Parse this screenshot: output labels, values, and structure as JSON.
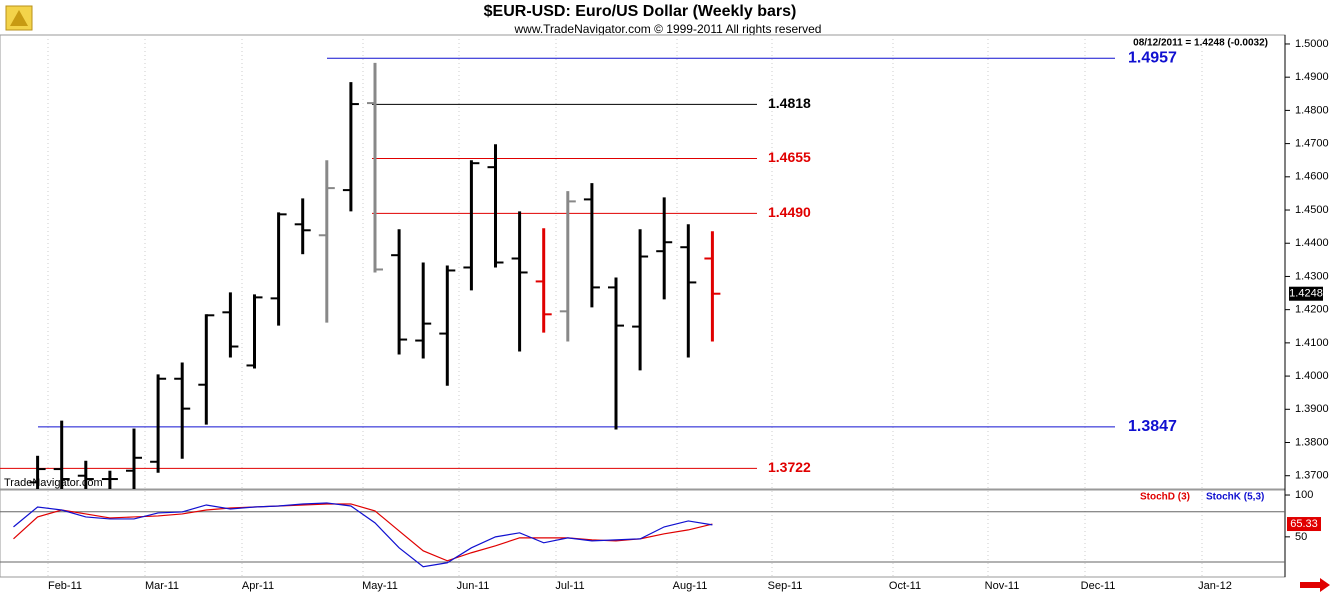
{
  "header": {
    "title": "$EUR-USD:  Euro/US Dollar  (Weekly bars)",
    "subtitle": "www.TradeNavigator.com © 1999-2011 All rights reserved",
    "info": "08/12/2011 = 1.4248 (-0.0032)",
    "watermark": "TradeNavigator.com"
  },
  "chart_data": [
    {
      "type": "ohlc",
      "categories": [
        null,
        null,
        null,
        null,
        null,
        null,
        null,
        null,
        null,
        null,
        null,
        null,
        null,
        null,
        null,
        null,
        null,
        null,
        null,
        null,
        null,
        null,
        null,
        null,
        null,
        null,
        null,
        null,
        null,
        null
      ],
      "open": [
        null,
        1.368,
        1.372,
        1.37,
        1.369,
        1.3715,
        1.3742,
        1.3992,
        1.3974,
        1.4192,
        1.4032,
        1.4234,
        1.4457,
        1.4424,
        1.456,
        1.4822,
        1.4364,
        1.4107,
        1.4128,
        1.4327,
        1.4629,
        1.4354,
        1.4285,
        1.4195,
        1.4532,
        1.4267,
        1.4149,
        1.4376,
        1.4388,
        1.4354
      ],
      "high": [
        null,
        1.376,
        1.3866,
        1.3745,
        1.3715,
        1.3842,
        1.4005,
        1.4041,
        1.4186,
        1.4252,
        1.4246,
        1.4493,
        1.4535,
        1.465,
        1.4885,
        1.4943,
        1.4442,
        1.4342,
        1.4333,
        1.465,
        1.4698,
        1.4496,
        1.4445,
        1.4557,
        1.4581,
        1.4297,
        1.4442,
        1.4538,
        1.4457,
        1.4436
      ],
      "low": [
        null,
        1.364,
        1.3655,
        1.364,
        1.366,
        1.366,
        1.3709,
        1.3751,
        1.3854,
        1.4056,
        1.4023,
        1.4152,
        1.4367,
        1.4161,
        1.4496,
        1.4312,
        1.4065,
        1.4053,
        1.3971,
        1.4258,
        1.4327,
        1.4074,
        1.4131,
        1.4104,
        1.4207,
        1.3839,
        1.4017,
        1.4231,
        1.4056,
        1.4104
      ],
      "close": [
        null,
        1.372,
        1.369,
        1.369,
        1.369,
        1.3754,
        1.3992,
        1.3902,
        1.4183,
        1.4089,
        1.4237,
        1.4487,
        1.4439,
        1.4566,
        1.4819,
        1.4321,
        1.411,
        1.4158,
        1.4318,
        1.4641,
        1.4342,
        1.4312,
        1.4186,
        1.4526,
        1.4267,
        1.4152,
        1.436,
        1.4403,
        1.4282,
        1.4248
      ],
      "colors": [
        "#000000",
        "#000000",
        "#000000",
        "#000000",
        "#000000",
        "#000000",
        "#000000",
        "#000000",
        "#000000",
        "#000000",
        "#000000",
        "#000000",
        "#000000",
        "#888888",
        "#000000",
        "#888888",
        "#000000",
        "#000000",
        "#000000",
        "#000000",
        "#000000",
        "#000000",
        "#e00000",
        "#888888",
        "#000000",
        "#000000",
        "#000000",
        "#000000",
        "#000000",
        "#e00000"
      ],
      "levels": [
        {
          "value": 1.4957,
          "label": "1.4957",
          "color": "#1010d0"
        },
        {
          "value": 1.4818,
          "label": "1.4818",
          "color": "#000000"
        },
        {
          "value": 1.4655,
          "label": "1.4655",
          "color": "#e00000"
        },
        {
          "value": 1.449,
          "label": "1.4490",
          "color": "#e00000"
        },
        {
          "value": 1.3847,
          "label": "1.3847",
          "color": "#1010d0"
        },
        {
          "value": 1.3722,
          "label": "1.3722",
          "color": "#e00000"
        }
      ],
      "ylim": [
        1.366,
        1.5027
      ],
      "yticks": [
        {
          "value": 1.37,
          "label": "1.3700"
        },
        {
          "value": 1.38,
          "label": "1.3800"
        },
        {
          "value": 1.39,
          "label": "1.3900"
        },
        {
          "value": 1.4,
          "label": "1.4000"
        },
        {
          "value": 1.41,
          "label": "1.4100"
        },
        {
          "value": 1.42,
          "label": "1.4200"
        },
        {
          "value": 1.43,
          "label": "1.4300"
        },
        {
          "value": 1.44,
          "label": "1.4400"
        },
        {
          "value": 1.45,
          "label": "1.4500"
        },
        {
          "value": 1.46,
          "label": "1.4600"
        },
        {
          "value": 1.47,
          "label": "1.4700"
        },
        {
          "value": 1.48,
          "label": "1.4800"
        },
        {
          "value": 1.49,
          "label": "1.4900"
        },
        {
          "value": 1.5,
          "label": "1.5000"
        }
      ],
      "months": [
        "Feb-11",
        "Mar-11",
        "Apr-11",
        "May-11",
        "Jun-11",
        "Jul-11",
        "Aug-11",
        "Sep-11",
        "Oct-11",
        "Nov-11",
        "Dec-11",
        "Jan-12"
      ]
    },
    {
      "type": "line",
      "series": [
        {
          "name": "StochD (3)",
          "color": "#e00000",
          "values": [
            47.6,
            73.8,
            82.1,
            77.4,
            72.6,
            73.8,
            75.0,
            77.4,
            82.1,
            84.5,
            85.7,
            86.9,
            88.1,
            89.3,
            89.3,
            81.0,
            57.1,
            33.3,
            21.4,
            31.0,
            39.3,
            48.8,
            48.8,
            48.8,
            46.4,
            45.2,
            47.6,
            53.6,
            58.3,
            65.33
          ]
        },
        {
          "name": "StochK (5,3)",
          "color": "#1010d0",
          "values": [
            61.9,
            85.7,
            82.1,
            73.8,
            71.4,
            71.4,
            78.6,
            79.8,
            88.1,
            83.3,
            85.7,
            86.9,
            89.3,
            90.5,
            86.9,
            66.7,
            36.9,
            14.3,
            19.0,
            36.9,
            50.0,
            54.8,
            42.9,
            48.8,
            45.2,
            46.4,
            47.6,
            61.9,
            69.0,
            64.3
          ]
        }
      ],
      "levels": [
        80,
        20
      ],
      "ylim": [
        2,
        106
      ],
      "yticks": [
        100,
        50
      ]
    }
  ]
}
